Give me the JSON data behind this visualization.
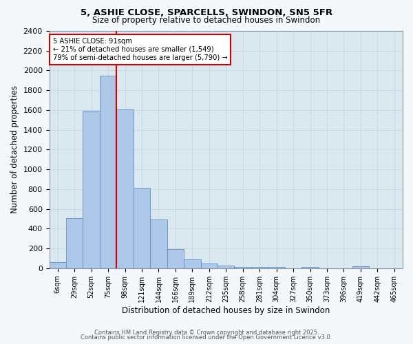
{
  "title1": "5, ASHIE CLOSE, SPARCELLS, SWINDON, SN5 5FR",
  "title2": "Size of property relative to detached houses in Swindon",
  "xlabel": "Distribution of detached houses by size in Swindon",
  "ylabel": "Number of detached properties",
  "bar_labels": [
    "6sqm",
    "29sqm",
    "52sqm",
    "75sqm",
    "98sqm",
    "121sqm",
    "144sqm",
    "166sqm",
    "189sqm",
    "212sqm",
    "235sqm",
    "258sqm",
    "281sqm",
    "304sqm",
    "327sqm",
    "350sqm",
    "373sqm",
    "396sqm",
    "419sqm",
    "442sqm",
    "465sqm"
  ],
  "bar_values": [
    60,
    510,
    1590,
    1950,
    1610,
    810,
    490,
    195,
    90,
    45,
    30,
    15,
    10,
    10,
    0,
    10,
    0,
    0,
    20,
    0,
    0
  ],
  "bar_color": "#aec6e8",
  "bar_edge_color": "#6090c0",
  "vline_x": 3.5,
  "vline_color": "#cc0000",
  "annotation_text": "5 ASHIE CLOSE: 91sqm\n← 21% of detached houses are smaller (1,549)\n79% of semi-detached houses are larger (5,790) →",
  "annotation_box_color": "#ffffff",
  "annotation_box_edge_color": "#cc0000",
  "ylim": [
    0,
    2400
  ],
  "yticks": [
    0,
    200,
    400,
    600,
    800,
    1000,
    1200,
    1400,
    1600,
    1800,
    2000,
    2200,
    2400
  ],
  "grid_color": "#c8d4e0",
  "bg_color": "#dce8f0",
  "fig_bg_color": "#f5f8fb",
  "footer1": "Contains HM Land Registry data © Crown copyright and database right 2025.",
  "footer2": "Contains public sector information licensed under the Open Government Licence v3.0."
}
